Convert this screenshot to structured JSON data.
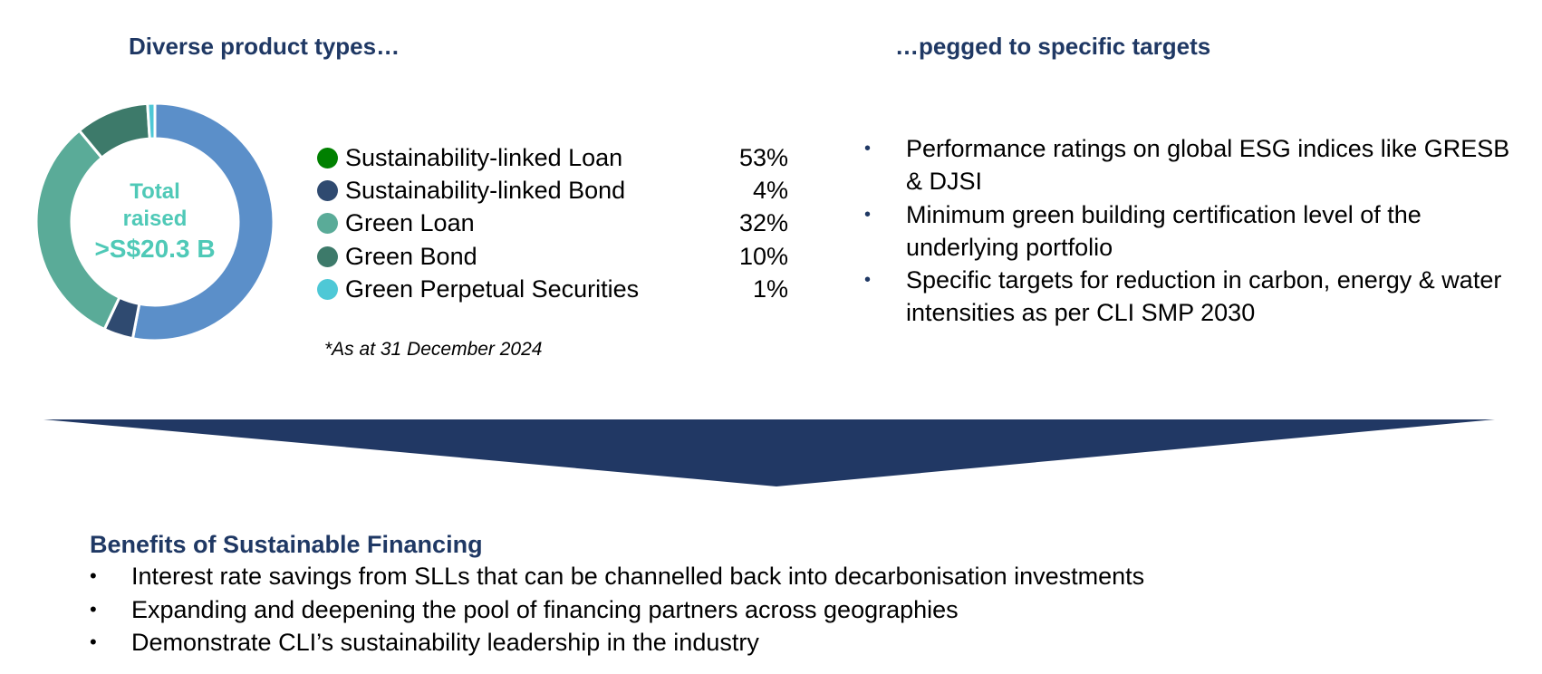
{
  "left_heading": "Diverse product types…",
  "right_heading": "…pegged to specific targets",
  "donut_center": {
    "line1": "Total",
    "line2": "raised",
    "line3": ">S$20.3 B"
  },
  "legend": [
    {
      "label": "Sustainability-linked Loan",
      "value": "53%",
      "dot_color": "#008000"
    },
    {
      "label": "Sustainability-linked Bond",
      "value": "4%",
      "dot_color": "#2f4a70"
    },
    {
      "label": "Green Loan",
      "value": "32%",
      "dot_color": "#5aab98"
    },
    {
      "label": "Green Bond",
      "value": "10%",
      "dot_color": "#3d7a6a"
    },
    {
      "label": "Green Perpetual Securities",
      "value": "1%",
      "dot_color": "#4ec8d6"
    }
  ],
  "footnote": "*As at 31 December 2024",
  "targets": [
    "Performance ratings on global ESG indices like GRESB & DJSI",
    "Minimum green building certification level of the underlying portfolio",
    "Specific targets for reduction in carbon, energy & water intensities as per CLI SMP 2030"
  ],
  "benefits": {
    "title": "Benefits of Sustainable Financing",
    "items": [
      "Interest rate savings from SLLs that can be channelled back into decarbonisation investments",
      "Expanding and deepening the pool of financing partners across geographies",
      "Demonstrate CLI’s sustainability leadership in the industry"
    ]
  },
  "colors": {
    "heading": "#1f3864",
    "center_text": "#4fc9b7",
    "arrow": "#213864"
  },
  "chart_data": {
    "type": "pie",
    "variant": "donut",
    "title": "Diverse product types…",
    "center_label": "Total raised >S$20.3 B",
    "categories": [
      "Sustainability-linked Loan",
      "Sustainability-linked Bond",
      "Green Loan",
      "Green Bond",
      "Green Perpetual Securities"
    ],
    "values": [
      53,
      4,
      32,
      10,
      1
    ],
    "unit": "%",
    "slice_colors": [
      "#5b8fc9",
      "#2f4a70",
      "#5aab98",
      "#3d7a6a",
      "#4ec8d6"
    ],
    "legend_position": "right",
    "note": "*As at 31 December 2024"
  }
}
